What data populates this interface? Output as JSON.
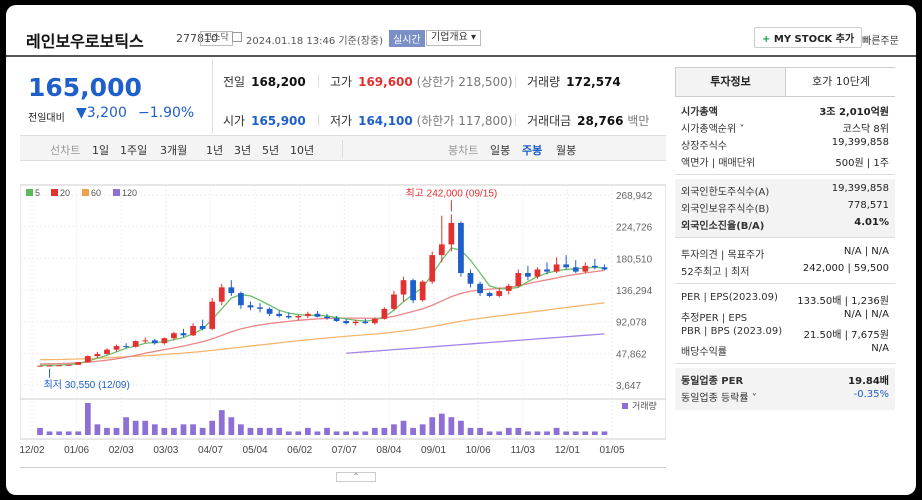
{
  "header": {
    "name": "레인보우로보틱스",
    "code": "277810",
    "market": "코스닥",
    "datetime": "2024.01.18 13:46 기준(장중)",
    "realtime": "실시간",
    "overview": "기업개요 ▾",
    "mystock": "MY STOCK 추가",
    "quick_order": "빠른주문"
  },
  "price": {
    "current": "165,000",
    "prev_label": "전일대비",
    "change": "▼3,200",
    "change_pct": "−1.90%"
  },
  "info": {
    "prev_close_label": "전일",
    "prev_close": "168,200",
    "high_label": "고가",
    "high": "169,600",
    "upper_limit": "(상한가 218,500)",
    "volume_label": "거래량",
    "volume": "172,574",
    "open_label": "시가",
    "open": "165,900",
    "low_label": "저가",
    "low": "164,100",
    "lower_limit": "(하한가 117,800)",
    "amount_label": "거래대금",
    "amount": "28,766",
    "amount_unit": "백만"
  },
  "tabs": {
    "line_label": "선차트",
    "line": [
      "1일",
      "1주일",
      "3개월",
      "1년",
      "3년",
      "5년",
      "10년"
    ],
    "candle_label": "봉차트",
    "candle": [
      "일봉",
      "주봉",
      "월봉"
    ],
    "active": "주봉"
  },
  "chart_data": {
    "type": "candlestick",
    "legend": [
      {
        "name": "5",
        "color": "#5cb85c"
      },
      {
        "name": "20",
        "color": "#e23131"
      },
      {
        "name": "60",
        "color": "#f0a24a"
      },
      {
        "name": "120",
        "color": "#8e6fd6"
      }
    ],
    "y_ticks": [
      "268,942",
      "224,726",
      "180,510",
      "136,294",
      "92,078",
      "47,862",
      "3,647"
    ],
    "x_ticks": [
      "12/02",
      "01/06",
      "02/03",
      "03/03",
      "04/07",
      "05/04",
      "06/02",
      "07/07",
      "08/04",
      "09/01",
      "10/06",
      "11/03",
      "12/01",
      "01/05"
    ],
    "ylim": [
      3647,
      268942
    ],
    "high_annotation": "최고 242,000 (09/15)",
    "low_annotation": "최저 30,550 (12/09)",
    "volume_label": "거래량",
    "colors": {
      "up": "#e23131",
      "down": "#1f5fc9",
      "volume": "#8e6fd6"
    },
    "candles": [
      [
        30600,
        30800,
        30550,
        30700
      ],
      [
        30700,
        31000,
        30500,
        30800
      ],
      [
        30800,
        31500,
        30600,
        31200
      ],
      [
        31200,
        32000,
        31000,
        31800
      ],
      [
        31800,
        36000,
        31500,
        35500
      ],
      [
        35500,
        45000,
        35000,
        44000
      ],
      [
        44000,
        50000,
        41000,
        47000
      ],
      [
        47000,
        55000,
        46000,
        53000
      ],
      [
        53000,
        60000,
        50000,
        58000
      ],
      [
        58000,
        62000,
        55000,
        57000
      ],
      [
        57000,
        66000,
        56000,
        65000
      ],
      [
        65000,
        70000,
        62000,
        66000
      ],
      [
        66000,
        68000,
        60000,
        62000
      ],
      [
        62000,
        70000,
        60000,
        69000
      ],
      [
        69000,
        78000,
        66000,
        76000
      ],
      [
        76000,
        82000,
        70000,
        73000
      ],
      [
        73000,
        90000,
        72000,
        86000
      ],
      [
        86000,
        95000,
        80000,
        82000
      ],
      [
        82000,
        125000,
        80000,
        120000
      ],
      [
        120000,
        145000,
        115000,
        140000
      ],
      [
        140000,
        150000,
        128000,
        132000
      ],
      [
        132000,
        134000,
        110000,
        115000
      ],
      [
        115000,
        120000,
        108000,
        112000
      ],
      [
        112000,
        118000,
        105000,
        110000
      ],
      [
        110000,
        112000,
        100000,
        103000
      ],
      [
        103000,
        108000,
        98000,
        100000
      ],
      [
        100000,
        105000,
        96000,
        98000
      ],
      [
        98000,
        102000,
        94000,
        100000
      ],
      [
        100000,
        106000,
        97000,
        103000
      ],
      [
        103000,
        107000,
        98000,
        99000
      ],
      [
        99000,
        103000,
        95000,
        97000
      ],
      [
        97000,
        100000,
        92000,
        93000
      ],
      [
        93000,
        96000,
        88000,
        90000
      ],
      [
        90000,
        95000,
        87000,
        92000
      ],
      [
        92000,
        96000,
        89000,
        90000
      ],
      [
        90000,
        98000,
        88000,
        96000
      ],
      [
        96000,
        112000,
        95000,
        110000
      ],
      [
        110000,
        135000,
        108000,
        130000
      ],
      [
        130000,
        155000,
        120000,
        150000
      ],
      [
        150000,
        152000,
        118000,
        122000
      ],
      [
        122000,
        150000,
        120000,
        148000
      ],
      [
        148000,
        190000,
        145000,
        185000
      ],
      [
        185000,
        240000,
        175000,
        200000
      ],
      [
        200000,
        242000,
        190000,
        230000
      ],
      [
        230000,
        232000,
        155000,
        160000
      ],
      [
        160000,
        165000,
        140000,
        145000
      ],
      [
        145000,
        148000,
        128000,
        132000
      ],
      [
        132000,
        134000,
        126000,
        128000
      ],
      [
        128000,
        140000,
        126000,
        135000
      ],
      [
        135000,
        145000,
        130000,
        142000
      ],
      [
        142000,
        165000,
        140000,
        160000
      ],
      [
        160000,
        170000,
        150000,
        155000
      ],
      [
        155000,
        168000,
        152000,
        165000
      ],
      [
        165000,
        175000,
        158000,
        162000
      ],
      [
        162000,
        182000,
        160000,
        172000
      ],
      [
        172000,
        185000,
        165000,
        168000
      ],
      [
        168000,
        178000,
        160000,
        162000
      ],
      [
        162000,
        175000,
        160000,
        170000
      ],
      [
        170000,
        180000,
        165000,
        168000
      ],
      [
        168000,
        172000,
        164000,
        165000
      ]
    ],
    "volume": [
      2,
      1,
      1,
      1,
      1,
      9,
      3,
      2,
      2,
      5,
      4,
      4,
      3,
      2,
      2,
      3,
      3,
      2,
      4,
      7,
      5,
      3,
      2,
      2,
      2,
      2,
      1,
      1,
      2,
      1,
      2,
      1,
      1,
      1,
      1,
      2,
      2,
      3,
      4,
      2,
      3,
      5,
      6,
      5,
      4,
      2,
      2,
      1,
      1,
      2,
      2,
      1,
      1,
      1,
      2,
      1,
      1,
      1,
      1,
      1
    ],
    "ma_values": {
      "ma5": [
        31000,
        31200,
        31400,
        32000,
        33500,
        37000,
        41000,
        45000,
        50000,
        55000,
        58000,
        62000,
        63000,
        64000,
        67000,
        70000,
        75000,
        82000,
        95000,
        110000,
        125000,
        130000,
        128000,
        122000,
        115000,
        108000,
        104000,
        102000,
        101000,
        101000,
        100000,
        98000,
        96000,
        94000,
        93000,
        94000,
        99000,
        108000,
        120000,
        130000,
        140000,
        158000,
        178000,
        195000,
        192000,
        178000,
        160000,
        142000,
        138000,
        138000,
        140000,
        148000,
        155000,
        160000,
        163000,
        165000,
        166000,
        167000,
        168000,
        167000
      ],
      "ma20": [
        33000,
        33200,
        33500,
        34000,
        34600,
        35500,
        36800,
        38300,
        40200,
        42500,
        45000,
        48000,
        50500,
        53000,
        55500,
        58000,
        61000,
        64000,
        68000,
        73000,
        78000,
        82000,
        85000,
        87500,
        89500,
        91000,
        92500,
        94000,
        95000,
        96000,
        96500,
        97000,
        97000,
        97000,
        96800,
        96700,
        97500,
        99500,
        103000,
        106500,
        110000,
        115000,
        121000,
        127000,
        131500,
        134500,
        136500,
        137500,
        138500,
        140000,
        142000,
        145000,
        148000,
        150500,
        153000,
        156000,
        158000,
        160000,
        162000,
        163500
      ],
      "ma60": [
        39000,
        39100,
        39300,
        39600,
        40000,
        40500,
        41000,
        41600,
        42300,
        43000,
        43700,
        44500,
        45300,
        46200,
        47200,
        48200,
        49400,
        50600,
        52000,
        53500,
        55000,
        56500,
        58000,
        59500,
        61000,
        62500,
        64000,
        65400,
        66800,
        68100,
        69300,
        70500,
        71700,
        72800,
        73800,
        74800,
        76000,
        77500,
        79200,
        81000,
        83000,
        85200,
        87700,
        90300,
        92700,
        94800,
        96700,
        98500,
        100200,
        101800,
        103400,
        105000,
        106700,
        108400,
        110100,
        111800,
        113500,
        115200,
        116800,
        118400
      ],
      "ma120_start_index": 32,
      "ma120": [
        48000,
        49000,
        50000,
        51000,
        52000,
        53000,
        54000,
        55000,
        56000,
        57000,
        58000,
        59000,
        60000,
        61000,
        62000,
        63000,
        64000,
        65000,
        66000,
        67000,
        68000,
        69000,
        70000,
        71000,
        72000,
        73000,
        74000,
        75000
      ]
    }
  },
  "right_panel": {
    "tab_info": "투자정보",
    "tab_order": "호가 10단계",
    "rows1": [
      {
        "l": "시가총액",
        "r": "3조 2,010억원",
        "bold": true
      },
      {
        "l": "시가총액순위 ˅",
        "r": "코스닥 8위"
      },
      {
        "l": "상장주식수",
        "r": "19,399,858"
      },
      {
        "l": "액면가 | 매매단위",
        "r": "500원 | 1주"
      }
    ],
    "rows2": [
      {
        "l": "외국인한도주식수(A)",
        "r": "19,399,858"
      },
      {
        "l": "외국인보유주식수(B)",
        "r": "778,571"
      },
      {
        "l": "외국인소진율(B/A)",
        "r": "4.01%",
        "bold": true
      }
    ],
    "rows3": [
      {
        "l": "투자의견 | 목표주가",
        "r": "N/A | N/A"
      },
      {
        "l": "52주최고 | 최저",
        "r": "242,000 | 59,500"
      }
    ],
    "rows4": [
      {
        "l": "PER | EPS(2023.09)",
        "r": "133.50배 | 1,236원"
      },
      {
        "l": "추정PER | EPS",
        "r": "N/A | N/A"
      },
      {
        "l": "PBR | BPS (2023.09)",
        "r": "21.50배 | 7,675원"
      },
      {
        "l": "배당수익률",
        "r": "N/A"
      }
    ],
    "rows5": [
      {
        "l": "동일업종 PER",
        "r": "19.84배",
        "bold": true
      },
      {
        "l": "동일업종 등락률 ˅",
        "r": "-0.35%"
      }
    ]
  }
}
